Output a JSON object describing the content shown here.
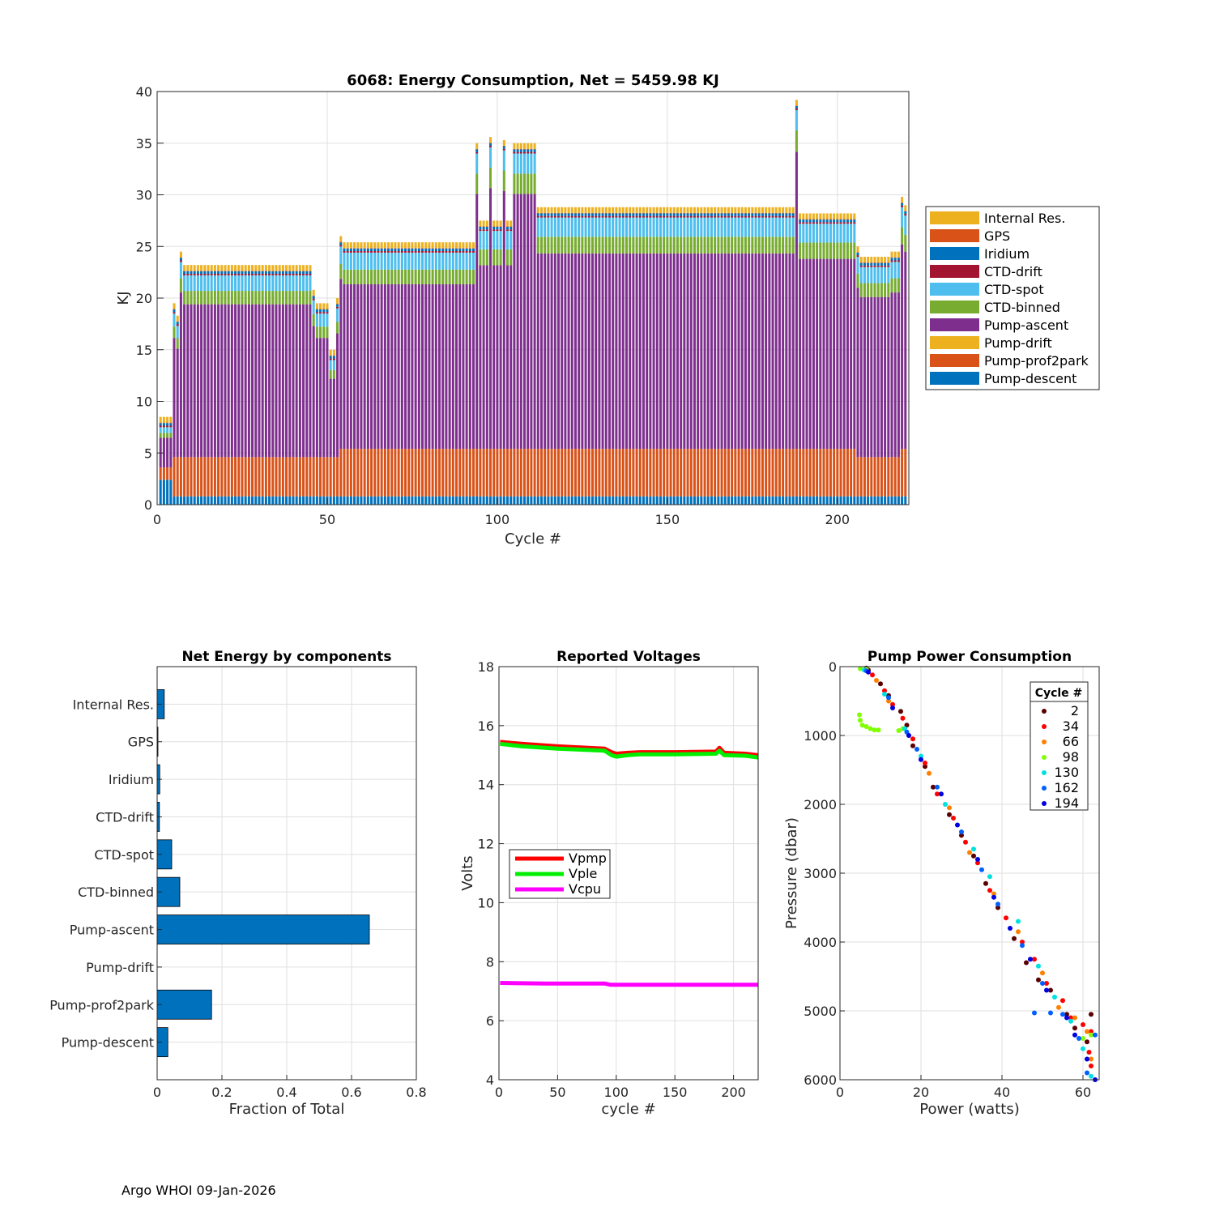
{
  "footer": "Argo WHOI 09-Jan-2026",
  "colors": {
    "Internal Res.": "#EDB120",
    "GPS": "#D95319",
    "Iridium": "#0072BD",
    "CTD-drift": "#A2142F",
    "CTD-spot": "#4DBEEE",
    "CTD-binned": "#77AC30",
    "Pump-ascent": "#7E2F8E",
    "Pump-drift": "#EDB120",
    "Pump-prof2park": "#D95319",
    "Pump-descent": "#0072BD",
    "Vpmp": "#FF0000",
    "Vple": "#00EE00",
    "Vcpu": "#FF00FF"
  },
  "chart_data": [
    {
      "id": "energy",
      "type": "bar",
      "stacked": true,
      "title": "6068: Energy Consumption,  Net = 5459.98 KJ",
      "xlabel": "Cycle #",
      "ylabel": "KJ",
      "xlim": [
        0,
        221
      ],
      "ylim": [
        0,
        40
      ],
      "xticks": [
        0,
        50,
        100,
        150,
        200
      ],
      "yticks": [
        0,
        5,
        10,
        15,
        20,
        25,
        30,
        35,
        40
      ],
      "grid": true,
      "legend_position": "outside-right",
      "legend": [
        "Internal Res.",
        "GPS",
        "Iridium",
        "CTD-drift",
        "CTD-spot",
        "CTD-binned",
        "Pump-ascent",
        "Pump-drift",
        "Pump-prof2park",
        "Pump-descent"
      ],
      "stack_order": [
        "Pump-descent",
        "Pump-prof2park",
        "Pump-drift",
        "Pump-ascent",
        "CTD-binned",
        "CTD-spot",
        "CTD-drift",
        "Iridium",
        "GPS",
        "Internal Res."
      ],
      "typical_components_kj": {
        "Pump-descent": 0.8,
        "Pump-prof2park": 3.8,
        "Pump-drift": 0.0,
        "CTD-binned": 1.3,
        "CTD-spot": 1.5,
        "CTD-drift": 0.15,
        "Iridium": 0.25,
        "GPS": 0.05,
        "Internal Res.": 0.55
      },
      "segments": [
        {
          "from": 1,
          "to": 4,
          "total": 8.5
        },
        {
          "from": 5,
          "to": 5,
          "total": 19.5
        },
        {
          "from": 6,
          "to": 6,
          "total": 18.3
        },
        {
          "from": 7,
          "to": 7,
          "total": 24.5
        },
        {
          "from": 8,
          "to": 45,
          "total": 23.2
        },
        {
          "from": 46,
          "to": 46,
          "total": 20.8
        },
        {
          "from": 47,
          "to": 50,
          "total": 19.5
        },
        {
          "from": 51,
          "to": 52,
          "total": 15.0
        },
        {
          "from": 53,
          "to": 53,
          "total": 20.0
        },
        {
          "from": 54,
          "to": 54,
          "total": 26.0
        },
        {
          "from": 55,
          "to": 93,
          "total": 25.4
        },
        {
          "from": 94,
          "to": 94,
          "total": 35.0
        },
        {
          "from": 95,
          "to": 97,
          "total": 27.5
        },
        {
          "from": 98,
          "to": 98,
          "total": 35.6
        },
        {
          "from": 99,
          "to": 101,
          "total": 27.5
        },
        {
          "from": 102,
          "to": 102,
          "total": 35.3
        },
        {
          "from": 103,
          "to": 104,
          "total": 27.5
        },
        {
          "from": 105,
          "to": 111,
          "total": 35.0
        },
        {
          "from": 112,
          "to": 187,
          "total": 28.8
        },
        {
          "from": 188,
          "to": 188,
          "total": 39.2
        },
        {
          "from": 189,
          "to": 205,
          "total": 28.2
        },
        {
          "from": 206,
          "to": 206,
          "total": 25.0
        },
        {
          "from": 207,
          "to": 215,
          "total": 24.0
        },
        {
          "from": 216,
          "to": 218,
          "total": 24.5
        },
        {
          "from": 219,
          "to": 219,
          "total": 29.8
        },
        {
          "from": 220,
          "to": 220,
          "total": 29.0
        }
      ]
    },
    {
      "id": "components",
      "type": "bar",
      "orientation": "horizontal",
      "title": "Net Energy by components",
      "xlabel": "Fraction of Total",
      "xlim": [
        0,
        0.8
      ],
      "xticks": [
        0,
        0.2,
        0.4,
        0.6,
        0.8
      ],
      "xtick_labels": [
        "0",
        "0.2",
        "0.4",
        "0.6",
        "0.8"
      ],
      "grid": true,
      "categories": [
        "Internal Res.",
        "GPS",
        "Iridium",
        "CTD-drift",
        "CTD-spot",
        "CTD-binned",
        "Pump-ascent",
        "Pump-drift",
        "Pump-prof2park",
        "Pump-descent"
      ],
      "values": [
        0.022,
        0.002,
        0.008,
        0.007,
        0.045,
        0.07,
        0.655,
        0.0,
        0.168,
        0.033
      ]
    },
    {
      "id": "voltages",
      "type": "line",
      "title": "Reported Voltages",
      "xlabel": "cycle #",
      "ylabel": "Volts",
      "xlim": [
        0,
        221
      ],
      "ylim": [
        4,
        18
      ],
      "xticks": [
        0,
        50,
        100,
        150,
        200
      ],
      "yticks": [
        4,
        6,
        8,
        10,
        12,
        14,
        16,
        18
      ],
      "grid": true,
      "legend_position": "middle-left",
      "series": [
        {
          "name": "Vpmp",
          "x": [
            1,
            20,
            50,
            90,
            96,
            100,
            110,
            120,
            150,
            185,
            188,
            192,
            210,
            221
          ],
          "y": [
            15.45,
            15.38,
            15.3,
            15.22,
            15.1,
            15.05,
            15.08,
            15.1,
            15.1,
            15.12,
            15.25,
            15.08,
            15.05,
            15.0
          ]
        },
        {
          "name": "Vple",
          "x": [
            1,
            20,
            50,
            90,
            96,
            100,
            110,
            120,
            150,
            185,
            188,
            192,
            210,
            221
          ],
          "y": [
            15.38,
            15.3,
            15.22,
            15.15,
            15.0,
            14.95,
            15.0,
            15.03,
            15.03,
            15.05,
            15.15,
            15.0,
            14.98,
            14.92
          ]
        },
        {
          "name": "Vcpu",
          "x": [
            1,
            40,
            90,
            95,
            150,
            221
          ],
          "y": [
            7.28,
            7.26,
            7.26,
            7.22,
            7.22,
            7.22
          ]
        }
      ]
    },
    {
      "id": "pump-power",
      "type": "scatter",
      "title": "Pump Power Consumption",
      "xlabel": "Power (watts)",
      "ylabel": "Pressure (dbar)",
      "xlim": [
        0,
        64
      ],
      "ylim": [
        0,
        6000
      ],
      "y_reversed": true,
      "xticks": [
        0,
        20,
        40,
        60
      ],
      "yticks": [
        0,
        1000,
        2000,
        3000,
        4000,
        5000,
        6000
      ],
      "grid": true,
      "legend_title": "Cycle #",
      "legend_position": "top-right",
      "series": [
        {
          "name": "2",
          "color": "#5A0000",
          "points": [
            [
              6.5,
              20
            ],
            [
              7,
              50
            ],
            [
              10,
              250
            ],
            [
              12,
              420
            ],
            [
              15,
              650
            ],
            [
              16.5,
              850
            ],
            [
              18,
              1150
            ],
            [
              21,
              1450
            ],
            [
              23,
              1750
            ],
            [
              27,
              2150
            ],
            [
              30,
              2450
            ],
            [
              33,
              2750
            ],
            [
              36,
              3150
            ],
            [
              39,
              3500
            ],
            [
              43,
              3950
            ],
            [
              46,
              4300
            ],
            [
              49,
              4550
            ],
            [
              52,
              4700
            ],
            [
              56,
              5050
            ],
            [
              58,
              5250
            ],
            [
              62,
              5050
            ],
            [
              61,
              5450
            ]
          ]
        },
        {
          "name": "34",
          "color": "#FF0000",
          "points": [
            [
              8,
              120
            ],
            [
              11,
              350
            ],
            [
              13,
              550
            ],
            [
              15.5,
              750
            ],
            [
              18,
              1050
            ],
            [
              21,
              1400
            ],
            [
              24,
              1850
            ],
            [
              28,
              2200
            ],
            [
              31,
              2550
            ],
            [
              34,
              2850
            ],
            [
              37,
              3250
            ],
            [
              41,
              3650
            ],
            [
              45,
              4000
            ],
            [
              48,
              4250
            ],
            [
              51,
              4600
            ],
            [
              55,
              4850
            ],
            [
              57,
              5100
            ],
            [
              60,
              5200
            ],
            [
              62,
              5300
            ],
            [
              61.5,
              5600
            ],
            [
              62,
              5800
            ]
          ]
        },
        {
          "name": "66",
          "color": "#FF8000",
          "points": [
            [
              9,
              200
            ],
            [
              12,
              500
            ],
            [
              17,
              1000
            ],
            [
              22,
              1550
            ],
            [
              27,
              2050
            ],
            [
              32,
              2700
            ],
            [
              38,
              3300
            ],
            [
              44,
              3850
            ],
            [
              50,
              4450
            ],
            [
              54,
              4950
            ],
            [
              58,
              5100
            ],
            [
              61,
              5300
            ],
            [
              62,
              5700
            ]
          ]
        },
        {
          "name": "98",
          "color": "#80FF00",
          "points": [
            [
              4.8,
              700
            ],
            [
              5,
              780
            ],
            [
              5.5,
              850
            ],
            [
              6.5,
              870
            ],
            [
              7.5,
              900
            ],
            [
              8.5,
              920
            ],
            [
              9.5,
              920
            ],
            [
              14.5,
              930
            ],
            [
              15.5,
              900
            ],
            [
              5,
              30
            ],
            [
              6.5,
              40
            ],
            [
              60,
              5400
            ],
            [
              62,
              5350
            ]
          ]
        },
        {
          "name": "130",
          "color": "#00E0E0",
          "points": [
            [
              6,
              50
            ],
            [
              11,
              400
            ],
            [
              16,
              900
            ],
            [
              20,
              1300
            ],
            [
              26,
              2000
            ],
            [
              33,
              2650
            ],
            [
              37,
              3050
            ],
            [
              44,
              3700
            ],
            [
              49,
              4350
            ],
            [
              53,
              4800
            ],
            [
              57,
              5150
            ],
            [
              60,
              5550
            ],
            [
              62,
              5950
            ]
          ]
        },
        {
          "name": "162",
          "color": "#0060FF",
          "points": [
            [
              6.5,
              60
            ],
            [
              12,
              450
            ],
            [
              16.5,
              950
            ],
            [
              19,
              1200
            ],
            [
              24,
              1750
            ],
            [
              30,
              2400
            ],
            [
              35,
              2950
            ],
            [
              39,
              3450
            ],
            [
              45,
              4050
            ],
            [
              50,
              4600
            ],
            [
              55,
              5050
            ],
            [
              59,
              5400
            ],
            [
              61,
              5900
            ],
            [
              63,
              5350
            ],
            [
              48,
              5030
            ],
            [
              52,
              5030
            ]
          ]
        },
        {
          "name": "194",
          "color": "#0000E0",
          "points": [
            [
              7,
              80
            ],
            [
              13,
              600
            ],
            [
              17,
              1000
            ],
            [
              20,
              1350
            ],
            [
              25,
              1850
            ],
            [
              29,
              2300
            ],
            [
              34,
              2800
            ],
            [
              38,
              3350
            ],
            [
              42,
              3800
            ],
            [
              47,
              4250
            ],
            [
              51,
              4700
            ],
            [
              56,
              5100
            ],
            [
              58,
              5350
            ],
            [
              61,
              5700
            ],
            [
              63,
              6000
            ]
          ]
        }
      ]
    }
  ]
}
